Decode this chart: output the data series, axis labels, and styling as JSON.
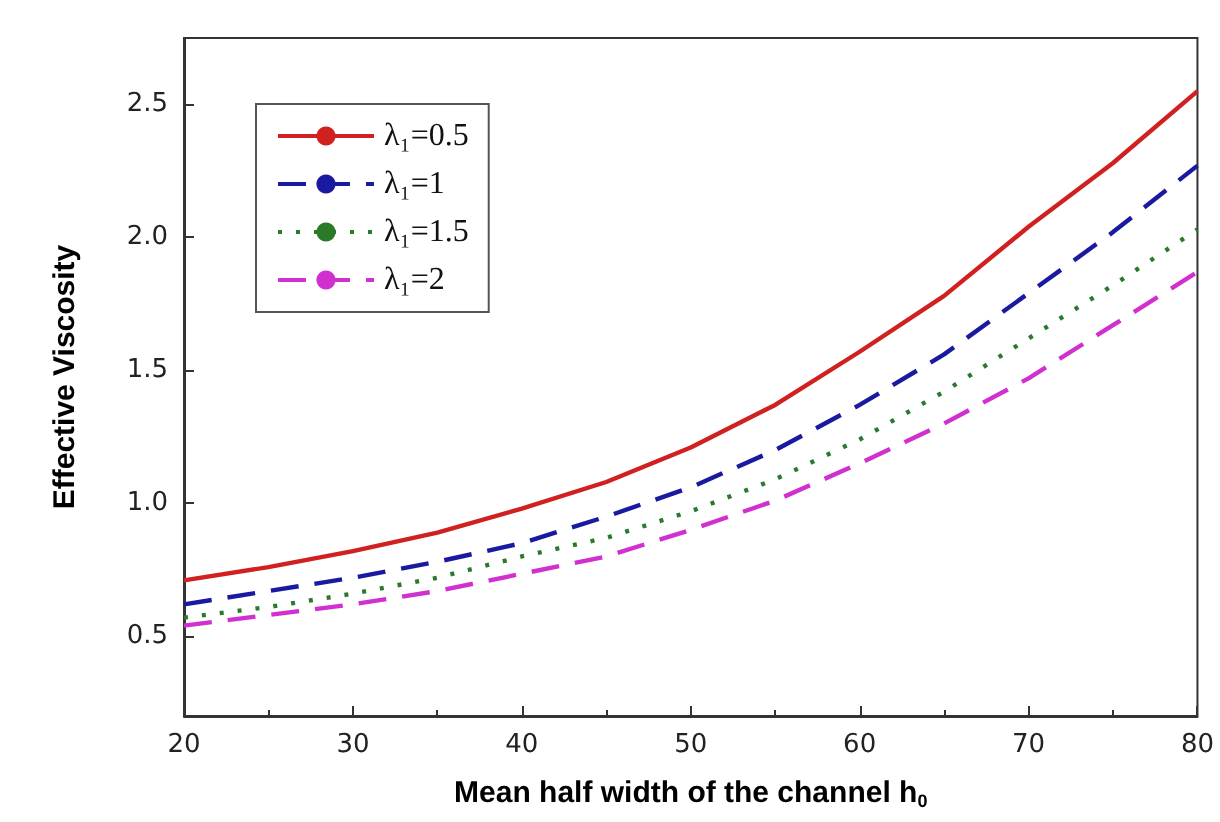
{
  "chart_data": {
    "type": "line",
    "xlabel": "Mean half width of the channel h$_{0}$",
    "ylabel": "Effective Viscosity",
    "x": [
      20,
      25,
      30,
      35,
      40,
      45,
      50,
      55,
      60,
      65,
      70,
      75,
      80
    ],
    "series": [
      {
        "name": "λ₁=0.5",
        "color": "#d02020",
        "line_style": "solid",
        "values": [
          0.71,
          0.76,
          0.82,
          0.89,
          0.98,
          1.08,
          1.21,
          1.37,
          1.57,
          1.78,
          2.04,
          2.28,
          2.55
        ]
      },
      {
        "name": "λ₁=1",
        "color": "#1a1aa0",
        "line_style": "dashed",
        "values": [
          0.62,
          0.67,
          0.72,
          0.78,
          0.85,
          0.95,
          1.06,
          1.2,
          1.37,
          1.56,
          1.79,
          2.02,
          2.27
        ]
      },
      {
        "name": "λ₁=1.5",
        "color": "#2a7a2a",
        "line_style": "dotted",
        "values": [
          0.57,
          0.61,
          0.66,
          0.72,
          0.8,
          0.87,
          0.97,
          1.09,
          1.24,
          1.42,
          1.62,
          1.82,
          2.03
        ]
      },
      {
        "name": "λ₁=2",
        "color": "#d030d0",
        "line_style": "dashed",
        "values": [
          0.54,
          0.58,
          0.62,
          0.67,
          0.735,
          0.8,
          0.9,
          1.01,
          1.15,
          1.3,
          1.47,
          1.67,
          1.87
        ]
      }
    ],
    "xlim": [
      20,
      80
    ],
    "xticks": [
      20,
      30,
      40,
      50,
      60,
      70,
      80
    ],
    "ylim": [
      0.2,
      2.75
    ],
    "yticks": [
      {
        "value": 0.5,
        "label": "0.5"
      },
      {
        "value": 1,
        "label": "1.0"
      },
      {
        "value": 1.5,
        "label": "1.5"
      },
      {
        "value": 2,
        "label": "2.0"
      },
      {
        "value": 2.5,
        "label": "2.5"
      }
    ],
    "grid": false,
    "legend": "top left",
    "marker": "none"
  }
}
